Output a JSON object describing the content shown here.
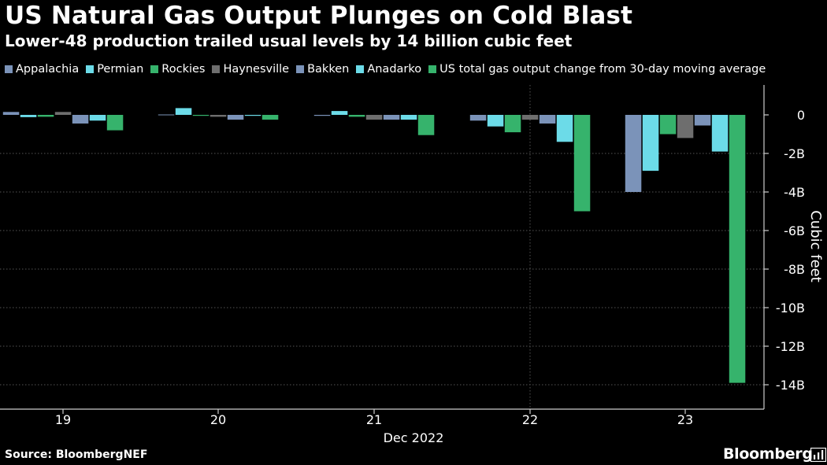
{
  "chart_data": {
    "type": "bar",
    "title": "US Natural Gas Output Plunges on Cold Blast",
    "subtitle": "Lower-48 production trailed usual levels by 14 billion cubic feet",
    "categories": [
      "19",
      "20",
      "21",
      "22",
      "23"
    ],
    "xlabel": "Dec 2022",
    "ylabel": "Cubic feet",
    "ylim": [
      -14.8,
      1.5
    ],
    "y_ticks": [
      {
        "value": 0,
        "label": "0"
      },
      {
        "value": -2,
        "label": "-2B"
      },
      {
        "value": -4,
        "label": "-4B"
      },
      {
        "value": -6,
        "label": "-6B"
      },
      {
        "value": -8,
        "label": "-8B"
      },
      {
        "value": -10,
        "label": "-10B"
      },
      {
        "value": -12,
        "label": "-12B"
      },
      {
        "value": -14,
        "label": "-14B"
      }
    ],
    "grid": true,
    "legend_position": "top",
    "series": [
      {
        "name": "Appalachia",
        "color": "#7b93b9",
        "values": [
          0.15,
          0.02,
          -0.05,
          -0.3,
          -4.0
        ]
      },
      {
        "name": "Permian",
        "color": "#6cdbe8",
        "values": [
          -0.12,
          0.35,
          0.2,
          -0.6,
          -2.9
        ]
      },
      {
        "name": "Rockies",
        "color": "#36b36c",
        "values": [
          -0.1,
          -0.05,
          -0.1,
          -0.9,
          -1.0
        ]
      },
      {
        "name": "Haynesville",
        "color": "#6e6e6e",
        "values": [
          0.15,
          -0.1,
          -0.25,
          -0.25,
          -1.2
        ]
      },
      {
        "name": "Bakken",
        "color": "#7b93b9",
        "values": [
          -0.45,
          -0.25,
          -0.25,
          -0.45,
          -0.55
        ]
      },
      {
        "name": "Anadarko",
        "color": "#6cdbe8",
        "values": [
          -0.3,
          -0.05,
          -0.25,
          -1.4,
          -1.9
        ]
      },
      {
        "name": "US total gas output change from 30-day moving average",
        "color": "#36b36c",
        "values": [
          -0.8,
          -0.25,
          -1.05,
          -5.0,
          -13.9
        ]
      }
    ]
  },
  "footer": {
    "source": "Source: BloombergNEF",
    "brand": "Bloomberg"
  },
  "colors": {
    "background": "#000000",
    "gridline": "#555555",
    "axis": "#cccccc",
    "text": "#ffffff"
  },
  "icons": {
    "brand": "bloomberg-logo-icon"
  }
}
